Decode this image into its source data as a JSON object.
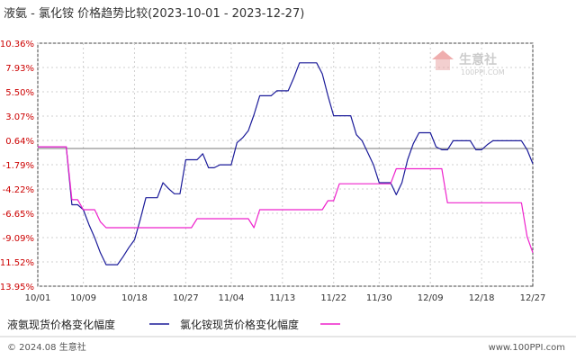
{
  "chart_data": {
    "type": "line",
    "title": "液氨 - 氯化铵 价格趋势比较(2023-10-01 - 2023-12-27)",
    "y_ticks": [
      "10.36%",
      "7.93%",
      "5.50%",
      "3.07%",
      "0.64%",
      "-1.79%",
      "-4.22%",
      "-6.65%",
      "-9.09%",
      "-11.52%",
      "-13.95%"
    ],
    "ylim": [
      -13.95,
      10.36
    ],
    "x_tick_labels": [
      "10/01",
      "10/09",
      "10/18",
      "10/27",
      "11/04",
      "11/13",
      "11/22",
      "11/30",
      "12/09",
      "12/18",
      "12/27"
    ],
    "x_tick_days": [
      0,
      8,
      17,
      26,
      34,
      43,
      52,
      60,
      69,
      78,
      87
    ],
    "grid": true,
    "series": [
      {
        "name": "液氨现货价格变化幅度",
        "color": "#1a1a99",
        "day": [
          0,
          5,
          6,
          7,
          8,
          9,
          10,
          11,
          12,
          13,
          14,
          15,
          16,
          17,
          18,
          19,
          20,
          21,
          22,
          23,
          24,
          25,
          26,
          27,
          28,
          29,
          30,
          31,
          32,
          33,
          34,
          35,
          36,
          37,
          38,
          39,
          40,
          41,
          42,
          43,
          44,
          45,
          46,
          47,
          48,
          49,
          50,
          51,
          52,
          53,
          54,
          55,
          56,
          57,
          58,
          59,
          60,
          61,
          62,
          63,
          64,
          65,
          66,
          67,
          68,
          69,
          70,
          71,
          72,
          73,
          74,
          75,
          76,
          77,
          78,
          79,
          80,
          81,
          82,
          83,
          84,
          85,
          86,
          87
        ],
        "value": [
          0.0,
          0.0,
          -5.8,
          -5.8,
          -6.3,
          -7.8,
          -9.1,
          -10.6,
          -11.8,
          -11.8,
          -11.8,
          -11.0,
          -10.1,
          -9.3,
          -7.3,
          -5.1,
          -5.1,
          -5.1,
          -3.6,
          -4.2,
          -4.7,
          -4.7,
          -1.3,
          -1.3,
          -1.3,
          -0.7,
          -2.1,
          -2.1,
          -1.8,
          -1.8,
          -1.8,
          0.4,
          0.9,
          1.6,
          3.2,
          5.1,
          5.1,
          5.1,
          5.6,
          5.6,
          5.6,
          6.9,
          8.4,
          8.4,
          8.4,
          8.4,
          7.3,
          5.1,
          3.1,
          3.1,
          3.1,
          3.1,
          1.2,
          0.6,
          -0.6,
          -1.8,
          -3.6,
          -3.6,
          -3.6,
          -4.8,
          -3.6,
          -1.3,
          0.3,
          1.4,
          1.4,
          1.4,
          0.0,
          -0.3,
          -0.3,
          0.6,
          0.6,
          0.6,
          0.6,
          -0.3,
          -0.3,
          0.2,
          0.6,
          0.6,
          0.6,
          0.6,
          0.6,
          0.6,
          -0.3,
          -1.7
        ]
      },
      {
        "name": "氯化铵现货价格变化幅度",
        "color": "#ee22cc",
        "day": [
          0,
          5,
          6,
          7,
          8,
          9,
          10,
          11,
          12,
          13,
          20,
          21,
          22,
          23,
          24,
          25,
          26,
          27,
          28,
          29,
          30,
          31,
          32,
          33,
          34,
          35,
          36,
          37,
          38,
          39,
          40,
          41,
          42,
          43,
          44,
          45,
          46,
          47,
          48,
          49,
          50,
          51,
          52,
          53,
          54,
          55,
          56,
          57,
          58,
          59,
          60,
          61,
          62,
          63,
          64,
          65,
          66,
          67,
          68,
          69,
          70,
          71,
          72,
          73,
          74,
          75,
          76,
          77,
          78,
          79,
          80,
          81,
          82,
          83,
          84,
          85,
          86,
          87
        ],
        "value": [
          0.0,
          0.0,
          -5.3,
          -5.3,
          -6.3,
          -6.3,
          -6.3,
          -7.5,
          -8.1,
          -8.1,
          -8.1,
          -8.1,
          -8.1,
          -8.1,
          -8.1,
          -8.1,
          -8.1,
          -8.1,
          -7.2,
          -7.2,
          -7.2,
          -7.2,
          -7.2,
          -7.2,
          -7.2,
          -7.2,
          -7.2,
          -7.2,
          -8.1,
          -6.3,
          -6.3,
          -6.3,
          -6.3,
          -6.3,
          -6.3,
          -6.3,
          -6.3,
          -6.3,
          -6.3,
          -6.3,
          -6.3,
          -5.4,
          -5.4,
          -3.7,
          -3.7,
          -3.7,
          -3.7,
          -3.7,
          -3.7,
          -3.7,
          -3.7,
          -3.7,
          -3.7,
          -2.2,
          -2.2,
          -2.2,
          -2.2,
          -2.2,
          -2.2,
          -2.2,
          -2.2,
          -2.2,
          -5.6,
          -5.6,
          -5.6,
          -5.6,
          -5.6,
          -5.6,
          -5.6,
          -5.6,
          -5.6,
          -5.6,
          -5.6,
          -5.6,
          -5.6,
          -5.6,
          -9.0,
          -10.6
        ]
      }
    ]
  },
  "watermark": {
    "brand": "生意社",
    "domain": "100PPI.COM"
  },
  "footer": {
    "copyright": "© 2024.08 生意社",
    "url": "www.100PPI.com"
  }
}
